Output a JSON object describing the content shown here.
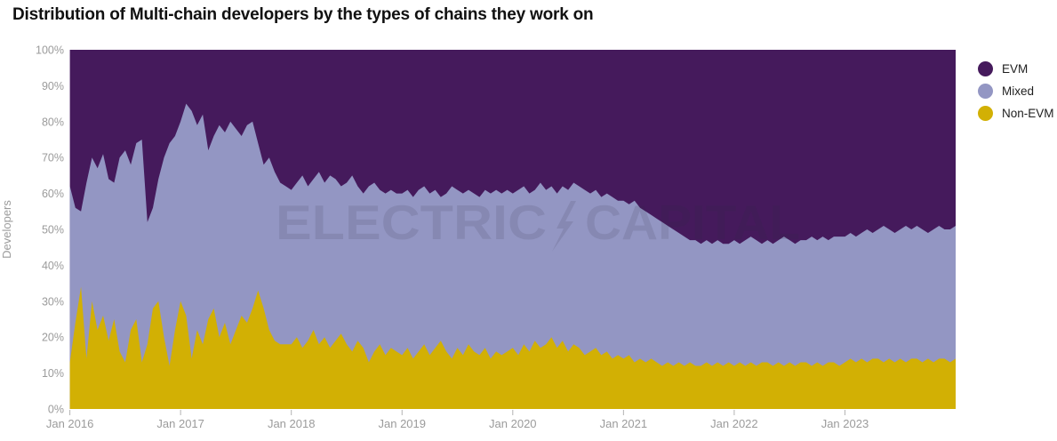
{
  "title": "Distribution of Multi-chain developers by the types of chains they work on",
  "watermark": {
    "left": "ELECTRIC",
    "right": "CAPITAL",
    "icon": "lightning-bolt"
  },
  "colors": {
    "background": "#ffffff",
    "title_text": "#111111",
    "axis_text": "#9b9b9b",
    "tick_mark": "#b3b3b3",
    "watermark": "#2b2b40"
  },
  "chart_data": {
    "type": "area",
    "stacked": true,
    "normalized_percent": true,
    "title": "Distribution of Multi-chain developers by the types of chains they work on",
    "xlabel": "",
    "ylabel": "Developers",
    "ylim": [
      0,
      100
    ],
    "grid": false,
    "legend_position": "right",
    "x_range": {
      "start": "Jan 2016",
      "end": "Dec 2023",
      "points_per_year": 20
    },
    "x_tick_labels": [
      "Jan 2016",
      "Jan 2017",
      "Jan 2018",
      "Jan 2019",
      "Jan 2020",
      "Jan 2021",
      "Jan 2022",
      "Jan 2023"
    ],
    "y_tick_labels": [
      "0%",
      "10%",
      "20%",
      "30%",
      "40%",
      "50%",
      "60%",
      "70%",
      "80%",
      "90%",
      "100%"
    ],
    "legend": [
      {
        "label": "EVM",
        "color": "#451A5C"
      },
      {
        "label": "Mixed",
        "color": "#9396C3"
      },
      {
        "label": "Non-EVM",
        "color": "#D2B004"
      }
    ],
    "series": [
      {
        "name": "Non-EVM",
        "color": "#D2B004",
        "unit": "%",
        "values": [
          13,
          24,
          34,
          14,
          30,
          22,
          26,
          19,
          25,
          16,
          13,
          22,
          25,
          13,
          18,
          28,
          30,
          20,
          12,
          22,
          30,
          26,
          14,
          22,
          18,
          25,
          28,
          20,
          24,
          18,
          22,
          26,
          24,
          28,
          33,
          28,
          22,
          19,
          18,
          18,
          18,
          20,
          17,
          19,
          22,
          18,
          20,
          17,
          19,
          21,
          18,
          16,
          19,
          17,
          13,
          16,
          18,
          15,
          17,
          16,
          15,
          17,
          14,
          16,
          18,
          15,
          17,
          19,
          16,
          14,
          17,
          15,
          18,
          16,
          15,
          17,
          14,
          16,
          15,
          16,
          17,
          15,
          18,
          16,
          19,
          17,
          18,
          20,
          17,
          19,
          16,
          18,
          17,
          15,
          16,
          17,
          15,
          16,
          14,
          15,
          14,
          15,
          13,
          14,
          13,
          14,
          13,
          12,
          13,
          12,
          13,
          12,
          13,
          12,
          12,
          13,
          12,
          13,
          12,
          13,
          12,
          13,
          12,
          13,
          12,
          13,
          13,
          12,
          13,
          12,
          13,
          12,
          13,
          13,
          12,
          13,
          12,
          13,
          13,
          12,
          13,
          14,
          13,
          14,
          13,
          14,
          14,
          13,
          14,
          13,
          14,
          13,
          14,
          14,
          13,
          14,
          13,
          14,
          14,
          13,
          14
        ]
      },
      {
        "name": "Mixed",
        "color": "#9396C3",
        "unit": "%",
        "values": [
          49,
          32,
          21,
          49,
          40,
          45,
          45,
          45,
          38,
          54,
          59,
          46,
          49,
          62,
          34,
          28,
          34,
          50,
          62,
          54,
          50,
          59,
          69,
          57,
          64,
          47,
          48,
          59,
          53,
          62,
          56,
          50,
          55,
          52,
          41,
          40,
          48,
          47,
          45,
          44,
          43,
          43,
          48,
          43,
          42,
          48,
          43,
          48,
          45,
          41,
          45,
          49,
          43,
          43,
          49,
          47,
          43,
          45,
          44,
          44,
          45,
          44,
          45,
          45,
          44,
          45,
          44,
          40,
          44,
          48,
          44,
          45,
          43,
          44,
          44,
          44,
          46,
          45,
          45,
          45,
          43,
          46,
          44,
          44,
          42,
          46,
          43,
          42,
          43,
          43,
          45,
          45,
          45,
          46,
          44,
          44,
          44,
          44,
          45,
          43,
          44,
          42,
          45,
          42,
          42,
          40,
          40,
          40,
          38,
          38,
          36,
          36,
          34,
          35,
          34,
          34,
          34,
          34,
          34,
          33,
          35,
          33,
          35,
          35,
          35,
          33,
          34,
          34,
          34,
          36,
          34,
          34,
          34,
          34,
          36,
          34,
          36,
          34,
          35,
          36,
          35,
          35,
          35,
          35,
          37,
          35,
          36,
          38,
          36,
          36,
          36,
          38,
          36,
          37,
          37,
          35,
          37,
          37,
          36,
          37,
          37
        ]
      },
      {
        "name": "EVM",
        "color": "#451A5C",
        "unit": "%",
        "remainder_to_100": true,
        "values": [
          38,
          44,
          45,
          37,
          30,
          33,
          29,
          36,
          37,
          30,
          28,
          32,
          26,
          25,
          48,
          44,
          36,
          30,
          26,
          24,
          20,
          15,
          17,
          21,
          18,
          28,
          24,
          21,
          23,
          20,
          22,
          24,
          21,
          20,
          26,
          32,
          30,
          34,
          37,
          38,
          39,
          37,
          35,
          38,
          36,
          34,
          37,
          35,
          36,
          38,
          37,
          35,
          38,
          40,
          38,
          37,
          39,
          40,
          39,
          40,
          40,
          39,
          41,
          39,
          38,
          40,
          39,
          41,
          40,
          38,
          39,
          40,
          39,
          40,
          41,
          39,
          40,
          39,
          40,
          39,
          40,
          39,
          38,
          40,
          39,
          37,
          39,
          38,
          40,
          38,
          39,
          37,
          38,
          39,
          40,
          39,
          41,
          40,
          41,
          42,
          42,
          43,
          42,
          44,
          45,
          46,
          47,
          48,
          49,
          50,
          51,
          52,
          53,
          53,
          54,
          53,
          54,
          53,
          54,
          54,
          53,
          54,
          53,
          52,
          53,
          54,
          53,
          54,
          53,
          52,
          53,
          54,
          53,
          53,
          52,
          53,
          52,
          53,
          52,
          52,
          52,
          51,
          52,
          51,
          50,
          51,
          50,
          49,
          50,
          51,
          50,
          49,
          50,
          49,
          50,
          51,
          50,
          49,
          50,
          50,
          49
        ]
      }
    ]
  }
}
